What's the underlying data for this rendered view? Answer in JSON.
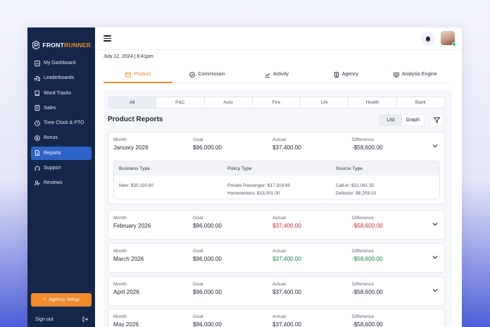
{
  "brand": {
    "name_part1": "FRONT",
    "name_part2": "RUNNER",
    "accent_color": "#f08a2b",
    "sidebar_color": "#14274a"
  },
  "sidebar": {
    "items": [
      {
        "label": "My Dashboard",
        "icon": "dashboard-icon"
      },
      {
        "label": "Leaderboards",
        "icon": "leaderboard-icon"
      },
      {
        "label": "Word Tracks",
        "icon": "book-icon"
      },
      {
        "label": "Sales",
        "icon": "sales-icon"
      },
      {
        "label": "Time Clock & PTO",
        "icon": "clock-icon"
      },
      {
        "label": "Bonus",
        "icon": "bonus-icon"
      },
      {
        "label": "Reports",
        "icon": "reports-icon",
        "active": true
      },
      {
        "label": "Support",
        "icon": "support-icon"
      },
      {
        "label": "Reviews",
        "icon": "reviews-icon"
      }
    ],
    "agency_setup_label": "Agency Setup",
    "sign_out_label": "Sign out"
  },
  "header": {
    "date": "July 12, 2024 | 6:41pm"
  },
  "tabs": [
    {
      "label": "Product",
      "icon": "box-icon",
      "active": true
    },
    {
      "label": "Commission",
      "icon": "commission-icon"
    },
    {
      "label": "Activity",
      "icon": "activity-icon"
    },
    {
      "label": "Agency",
      "icon": "agency-icon"
    },
    {
      "label": "Analysis Engine",
      "icon": "engine-icon"
    }
  ],
  "filters": [
    "All",
    "P&C",
    "Auto",
    "Fire",
    "Life",
    "Health",
    "Bank"
  ],
  "reports": {
    "title": "Product Reports",
    "view_list": "List",
    "view_graph": "Graph",
    "col_month": "Month",
    "col_goal": "Goal",
    "col_actual": "Actual",
    "col_difference": "Difference",
    "rows": [
      {
        "month": "January 2026",
        "goal": "$96,000.00",
        "actual": "$37,400.00",
        "difference": "-$58,600.00",
        "actual_status": "neutral",
        "diff_status": "neutral"
      },
      {
        "month": "February 2026",
        "goal": "$96,000.00",
        "actual": "$37,400.00",
        "difference": "-$58,600.00",
        "actual_status": "red",
        "diff_status": "red"
      },
      {
        "month": "March 2026",
        "goal": "$96,000.00",
        "actual": "$37,400.00",
        "difference": "-$58,600.00",
        "actual_status": "green",
        "diff_status": "green"
      },
      {
        "month": "April 2026",
        "goal": "$96,000.00",
        "actual": "$37,400.00",
        "difference": "-$58,600.00",
        "actual_status": "neutral",
        "diff_status": "neutral"
      },
      {
        "month": "May 2026",
        "goal": "$96,000.00",
        "actual": "$37,400.00",
        "difference": "-$58,600.00",
        "actual_status": "neutral",
        "diff_status": "neutral"
      }
    ],
    "details": {
      "business_type_label": "Business Type",
      "policy_type_label": "Policy Type",
      "source_type_label": "Source Type",
      "business_type_lines": [
        "New: $30,320.60"
      ],
      "policy_type_lines": [
        "Private Passenger: $17,319.60",
        "Homeowners: $13,001.00"
      ],
      "source_type_lines": [
        "Call-in: $22,061.50",
        "Defector: $8,259.10"
      ]
    }
  }
}
